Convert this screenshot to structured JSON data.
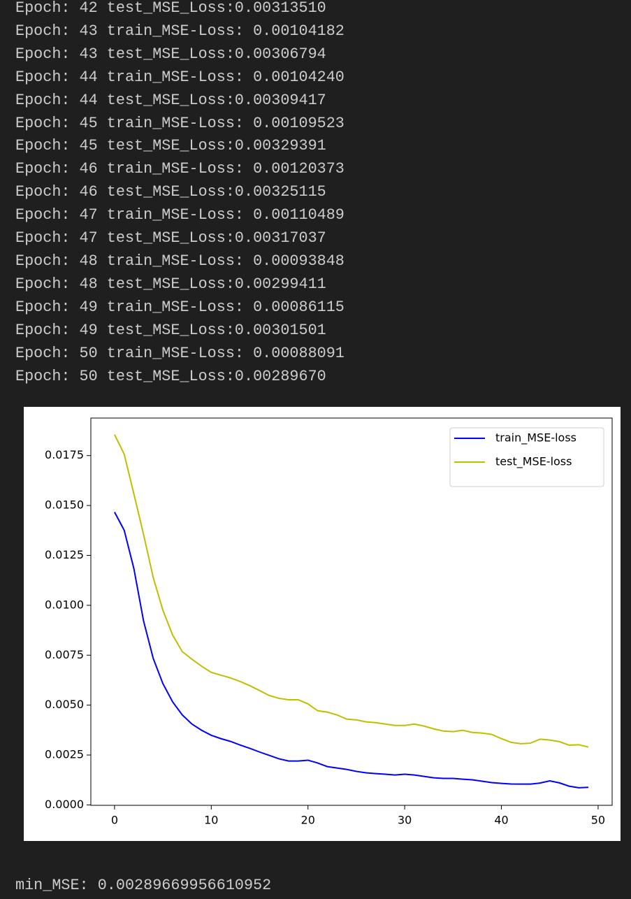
{
  "console_lines": [
    "Epoch: 42 test_MSE_Loss:0.00313510",
    "Epoch: 43 train_MSE-Loss: 0.00104182",
    "Epoch: 43 test_MSE_Loss:0.00306794",
    "Epoch: 44 train_MSE-Loss: 0.00104240",
    "Epoch: 44 test_MSE_Loss:0.00309417",
    "Epoch: 45 train_MSE-Loss: 0.00109523",
    "Epoch: 45 test_MSE_Loss:0.00329391",
    "Epoch: 46 train_MSE-Loss: 0.00120373",
    "Epoch: 46 test_MSE_Loss:0.00325115",
    "Epoch: 47 train_MSE-Loss: 0.00110489",
    "Epoch: 47 test_MSE_Loss:0.00317037",
    "Epoch: 48 train_MSE-Loss: 0.00093848",
    "Epoch: 48 test_MSE_Loss:0.00299411",
    "Epoch: 49 train_MSE-Loss: 0.00086115",
    "Epoch: 49 test_MSE_Loss:0.00301501",
    "Epoch: 50 train_MSE-Loss: 0.00088091",
    "Epoch: 50 test_MSE_Loss:0.00289670"
  ],
  "chart_data": {
    "type": "line",
    "x": [
      0,
      1,
      2,
      3,
      4,
      5,
      6,
      7,
      8,
      9,
      10,
      11,
      12,
      13,
      14,
      15,
      16,
      17,
      18,
      19,
      20,
      21,
      22,
      23,
      24,
      25,
      26,
      27,
      28,
      29,
      30,
      31,
      32,
      33,
      34,
      35,
      36,
      37,
      38,
      39,
      40,
      41,
      42,
      43,
      44,
      45,
      46,
      47,
      48,
      49
    ],
    "series": [
      {
        "name": "train_MSE-loss",
        "color": "#0000ff",
        "values": [
          0.01467,
          0.01376,
          0.01184,
          0.00922,
          0.00734,
          0.00608,
          0.00517,
          0.00451,
          0.00405,
          0.00374,
          0.00349,
          0.00332,
          0.00318,
          0.003,
          0.00283,
          0.00265,
          0.00248,
          0.00231,
          0.0022,
          0.0022,
          0.00224,
          0.0021,
          0.00192,
          0.00185,
          0.00178,
          0.00168,
          0.00161,
          0.00157,
          0.00154,
          0.0015,
          0.00154,
          0.0015,
          0.00143,
          0.00136,
          0.00133,
          0.00133,
          0.00129,
          0.00126,
          0.00119,
          0.00112,
          0.00108,
          0.00105,
          0.00104182,
          0.0010424,
          0.00109523,
          0.00120373,
          0.00110489,
          0.00093848,
          0.00086115,
          0.00088091
        ]
      },
      {
        "name": "test_MSE-loss",
        "color": "#bfbf00",
        "values": [
          0.01855,
          0.01757,
          0.01558,
          0.01355,
          0.01139,
          0.00975,
          0.00852,
          0.00768,
          0.0073,
          0.00695,
          0.00664,
          0.0065,
          0.00636,
          0.00618,
          0.00597,
          0.00573,
          0.00548,
          0.00534,
          0.00527,
          0.00527,
          0.00506,
          0.00472,
          0.00465,
          0.00451,
          0.0043,
          0.00426,
          0.00416,
          0.00412,
          0.00405,
          0.00398,
          0.00398,
          0.00405,
          0.00395,
          0.00381,
          0.0037,
          0.00367,
          0.00374,
          0.00363,
          0.0036,
          0.00353,
          0.00332,
          0.0031351,
          0.00306794,
          0.00309417,
          0.00329391,
          0.00325115,
          0.00317037,
          0.00299411,
          0.00301501,
          0.0028967
        ]
      }
    ],
    "xlim": [
      -2.45,
      51.45
    ],
    "xticks": [
      0,
      10,
      20,
      30,
      40,
      50
    ],
    "ylim": [
      -2e-05,
      0.01938
    ],
    "yticks": [
      {
        "value": 0,
        "label": "0.0000"
      },
      {
        "value": 0.0025,
        "label": "0.0025"
      },
      {
        "value": 0.005,
        "label": "0.0050"
      },
      {
        "value": 0.0075,
        "label": "0.0075"
      },
      {
        "value": 0.01,
        "label": "0.0100"
      },
      {
        "value": 0.0125,
        "label": "0.0125"
      },
      {
        "value": 0.015,
        "label": "0.0150"
      },
      {
        "value": 0.0175,
        "label": "0.0175"
      }
    ],
    "legend": "upper right",
    "grid": false
  },
  "footer": "min_MSE: 0.00289669956610952"
}
